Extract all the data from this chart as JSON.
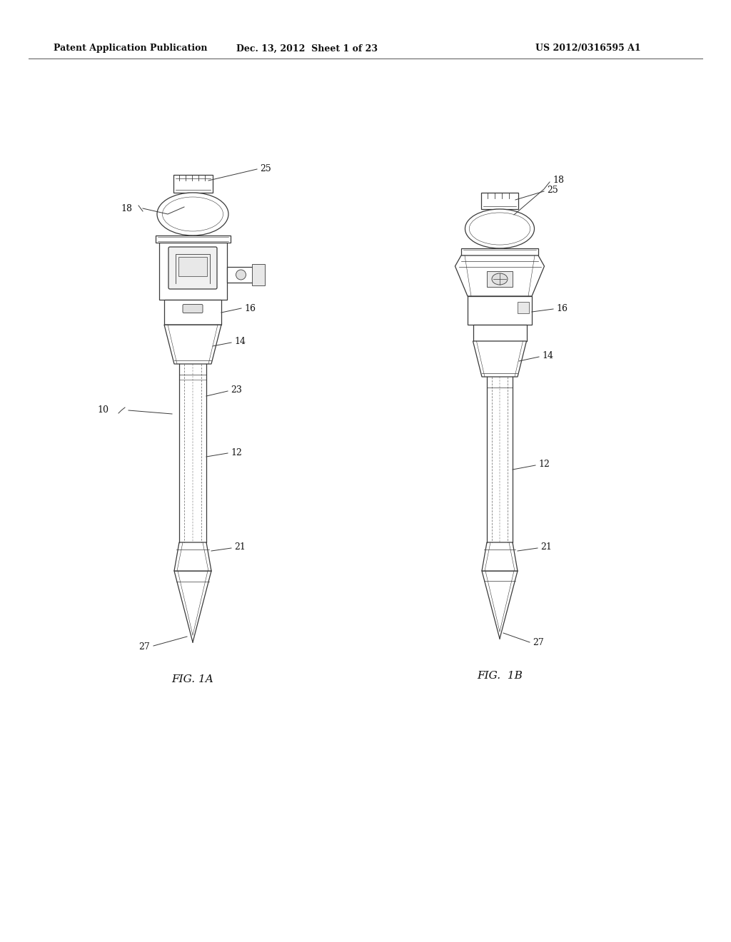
{
  "bg_color": "#ffffff",
  "header_left": "Patent Application Publication",
  "header_mid": "Dec. 13, 2012  Sheet 1 of 23",
  "header_right": "US 2012/0316595 A1",
  "fig1a_label": "FIG. 1A",
  "fig1b_label": "FIG.  1B",
  "line_color": "#3a3a3a",
  "text_color": "#111111"
}
